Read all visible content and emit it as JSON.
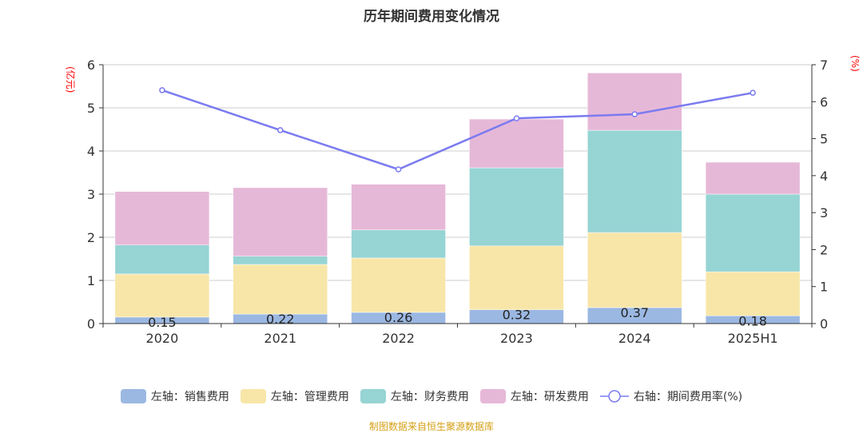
{
  "chart_data": {
    "type": "bar",
    "title": "历年期间费用变化情况",
    "categories": [
      "2020",
      "2021",
      "2022",
      "2023",
      "2024",
      "2025H1"
    ],
    "left_axis": {
      "unit_label": "(亿元)",
      "ylim": [
        0,
        6
      ],
      "ticks": [
        0,
        1,
        2,
        3,
        4,
        5,
        6
      ]
    },
    "right_axis": {
      "unit_label": "(%)",
      "ylim": [
        0,
        7
      ],
      "ticks": [
        0,
        1,
        2,
        3,
        4,
        5,
        6,
        7
      ]
    },
    "stacked": true,
    "grid": true,
    "legend_position": "bottom",
    "series": [
      {
        "name": "左轴：销售费用",
        "axis": "left",
        "type": "bar",
        "color": "#9bb8e2",
        "values": [
          0.15,
          0.22,
          0.26,
          0.32,
          0.37,
          0.18
        ],
        "show_labels": true
      },
      {
        "name": "左轴：管理费用",
        "axis": "left",
        "type": "bar",
        "color": "#f7e6a8",
        "values": [
          1.0,
          1.15,
          1.26,
          1.48,
          1.74,
          1.02
        ]
      },
      {
        "name": "左轴：财务费用",
        "axis": "left",
        "type": "bar",
        "color": "#97d4d4",
        "values": [
          0.67,
          0.19,
          0.65,
          1.81,
          2.37,
          1.8
        ]
      },
      {
        "name": "左轴：研发费用",
        "axis": "left",
        "type": "bar",
        "color": "#e6b8d8",
        "values": [
          1.24,
          1.59,
          1.06,
          1.13,
          1.33,
          0.74
        ]
      },
      {
        "name": "右轴：期间费用率(%)",
        "axis": "right",
        "type": "line",
        "color": "#7b7bf0",
        "values": [
          6.31,
          5.23,
          4.17,
          5.55,
          5.66,
          6.24
        ]
      }
    ]
  },
  "source": "制图数据来自恒生聚源数据库"
}
